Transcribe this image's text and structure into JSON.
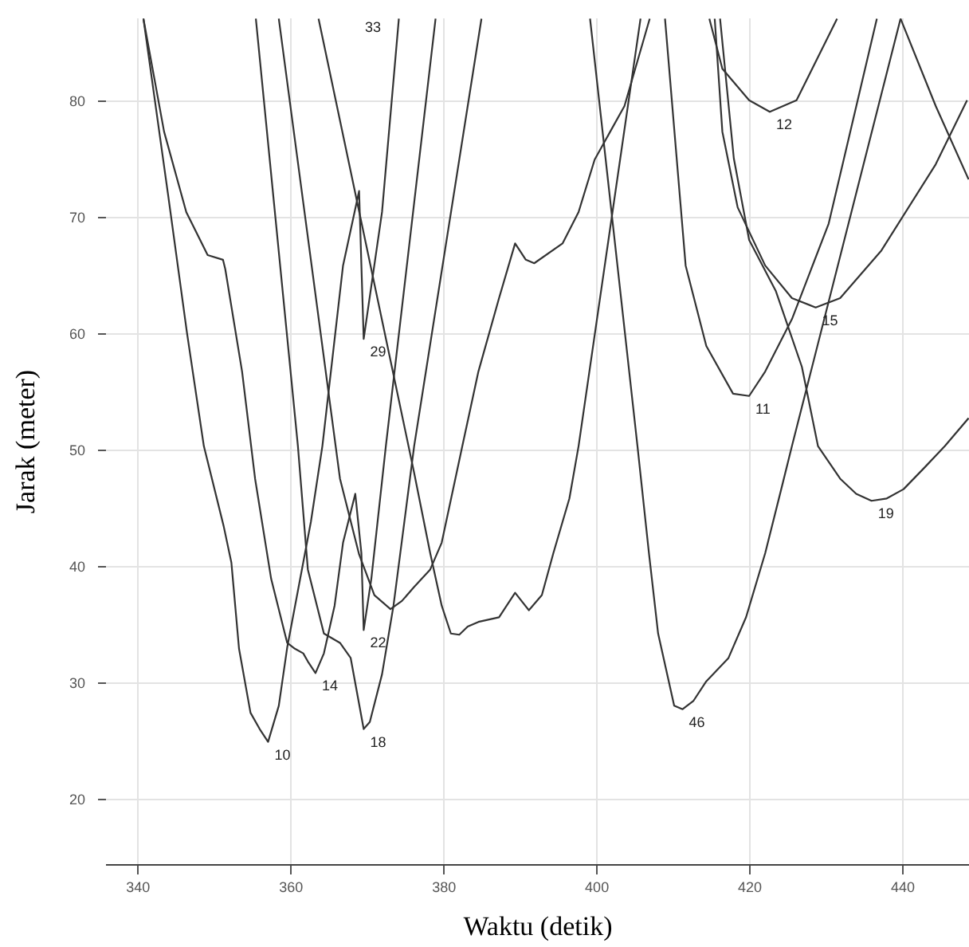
{
  "chart_data": {
    "type": "line",
    "xlabel": "Waktu (detik)",
    "ylabel": "Jarak (meter)",
    "xlim": [
      335.8,
      448.75
    ],
    "ylim": [
      14.4,
      87.1
    ],
    "xticks": [
      340,
      360,
      380,
      400,
      420,
      440
    ],
    "yticks": [
      20,
      30,
      40,
      50,
      60,
      70,
      80
    ],
    "grid": true,
    "marker": "none",
    "line_style": "solid",
    "series": [
      {
        "color": "#333333",
        "x": [
          340.8,
          344,
          346.5,
          348.7,
          351.3,
          352.3,
          353.3,
          354.8,
          356,
          357.1,
          358.5,
          359.6,
          362.7,
          364.2,
          366.9,
          369,
          369.6,
          372,
          374.2
        ],
        "values": [
          87,
          72,
          60,
          50.3,
          43.4,
          40.3,
          32.9,
          27.4,
          26,
          24.9,
          28,
          33,
          43.8,
          50.3,
          65.8,
          72.2,
          59.5,
          70.4,
          87
        ]
      },
      {
        "color": "#333333",
        "x": [
          340.8,
          343.5,
          346.4,
          349.2,
          351.2,
          351.5,
          353.7,
          355.4,
          357.5,
          359.6,
          360.6,
          361.7,
          362.3,
          363.3,
          364.4,
          365.8,
          366.9,
          368.5,
          369.3,
          369.6,
          370.6,
          372.5,
          379
        ],
        "values": [
          87,
          77.3,
          70.4,
          66.7,
          66.3,
          65.5,
          56.7,
          47.5,
          38.9,
          33.4,
          32.9,
          32.5,
          31.8,
          30.8,
          32.5,
          36.6,
          42,
          46.2,
          41.1,
          34.5,
          38.9,
          50.3,
          87
        ]
      },
      {
        "color": "#333333",
        "x": [
          355.5,
          361,
          362.3,
          364.4,
          366.5,
          367.9,
          369.6,
          370.4,
          372,
          373.5,
          376.2,
          385
        ],
        "values": [
          87,
          50.3,
          39.7,
          34.2,
          33.4,
          32.1,
          26,
          26.6,
          30.7,
          36.6,
          50.3,
          87
        ]
      },
      {
        "color": "#333333",
        "x": [
          363.7,
          376.2,
          378.3,
          379.8,
          381,
          382.1,
          383.2,
          384.6,
          387.3,
          389.4,
          391.2,
          392.9,
          394.4,
          396.5,
          397.7,
          405.8
        ],
        "values": [
          87,
          48,
          41.1,
          36.6,
          34.2,
          34.1,
          34.8,
          35.2,
          35.6,
          37.7,
          36.2,
          37.5,
          41.1,
          45.8,
          50.3,
          87
        ]
      },
      {
        "color": "#333333",
        "x": [
          358.5,
          366.5,
          369,
          371,
          373.1,
          374.6,
          376.2,
          378.3,
          379.8,
          382.5,
          384.6,
          387.3,
          389.4,
          390.8,
          391.9,
          395.6,
          397.7,
          399.8,
          403.7,
          407
        ],
        "values": [
          87,
          47.5,
          41,
          37.5,
          36.3,
          37,
          38.2,
          39.7,
          42,
          50.3,
          56.7,
          63,
          67.7,
          66.3,
          66,
          67.7,
          70.4,
          74.9,
          79.5,
          87
        ]
      },
      {
        "color": "#333333",
        "x": [
          399.2,
          405.4,
          406.9,
          408.1,
          410.2,
          411.3,
          412.7,
          414.4,
          417.3,
          419.6,
          422.1,
          424.2,
          425.6,
          439.8
        ],
        "values": [
          87,
          50.3,
          41.1,
          34.2,
          28,
          27.7,
          28.4,
          30.1,
          32.1,
          35.6,
          41.1,
          46.6,
          50.3,
          87
        ]
      },
      {
        "color": "#333333",
        "x": [
          409,
          411.7,
          414.4,
          417.9,
          420,
          422.1,
          425.6,
          430.4,
          436.7
        ],
        "values": [
          87,
          65.8,
          58.9,
          54.8,
          54.6,
          56.7,
          61.2,
          69.4,
          87
        ]
      },
      {
        "color": "#333333",
        "x": [
          414.8,
          416.5,
          420,
          422.7,
          426.2,
          431.5
        ],
        "values": [
          87,
          82.7,
          80,
          79,
          80,
          87
        ]
      },
      {
        "color": "#333333",
        "x": [
          415.5,
          416.5,
          418.5,
          422.1,
          425.6,
          428.7,
          431.9,
          437.3,
          444.4,
          448.5
        ],
        "values": [
          87,
          77.3,
          70.8,
          65.8,
          63,
          62.2,
          63,
          67.1,
          74.5,
          80
        ]
      },
      {
        "color": "#333333",
        "x": [
          416.2,
          418,
          420,
          423.5,
          426.9,
          429,
          431.9,
          434,
          436,
          438,
          440.2,
          443,
          445.6,
          448.7
        ],
        "values": [
          87,
          75,
          68,
          63.6,
          57.1,
          50.3,
          47.5,
          46.2,
          45.6,
          45.8,
          46.6,
          48.5,
          50.3,
          52.7
        ]
      },
      {
        "color": "#333333",
        "x": [
          439.8,
          444.4,
          448.7
        ],
        "values": [
          87,
          79.5,
          73.2
        ]
      }
    ],
    "annotations": [
      {
        "text": "10",
        "x": 357.1,
        "y": 24.9
      },
      {
        "text": "14",
        "x": 363.3,
        "y": 30.8
      },
      {
        "text": "18",
        "x": 369.6,
        "y": 26
      },
      {
        "text": "22",
        "x": 369.6,
        "y": 34.5
      },
      {
        "text": "29",
        "x": 369.6,
        "y": 59.5
      },
      "33",
      {
        "text": "46",
        "x": 411.3,
        "y": 27.7
      },
      {
        "text": "11",
        "x": 420,
        "y": 54.6
      },
      {
        "text": "12",
        "x": 422.7,
        "y": 79
      },
      {
        "text": "15",
        "x": 428.7,
        "y": 62.2
      },
      {
        "text": "19",
        "x": 436,
        "y": 45.6
      }
    ]
  }
}
